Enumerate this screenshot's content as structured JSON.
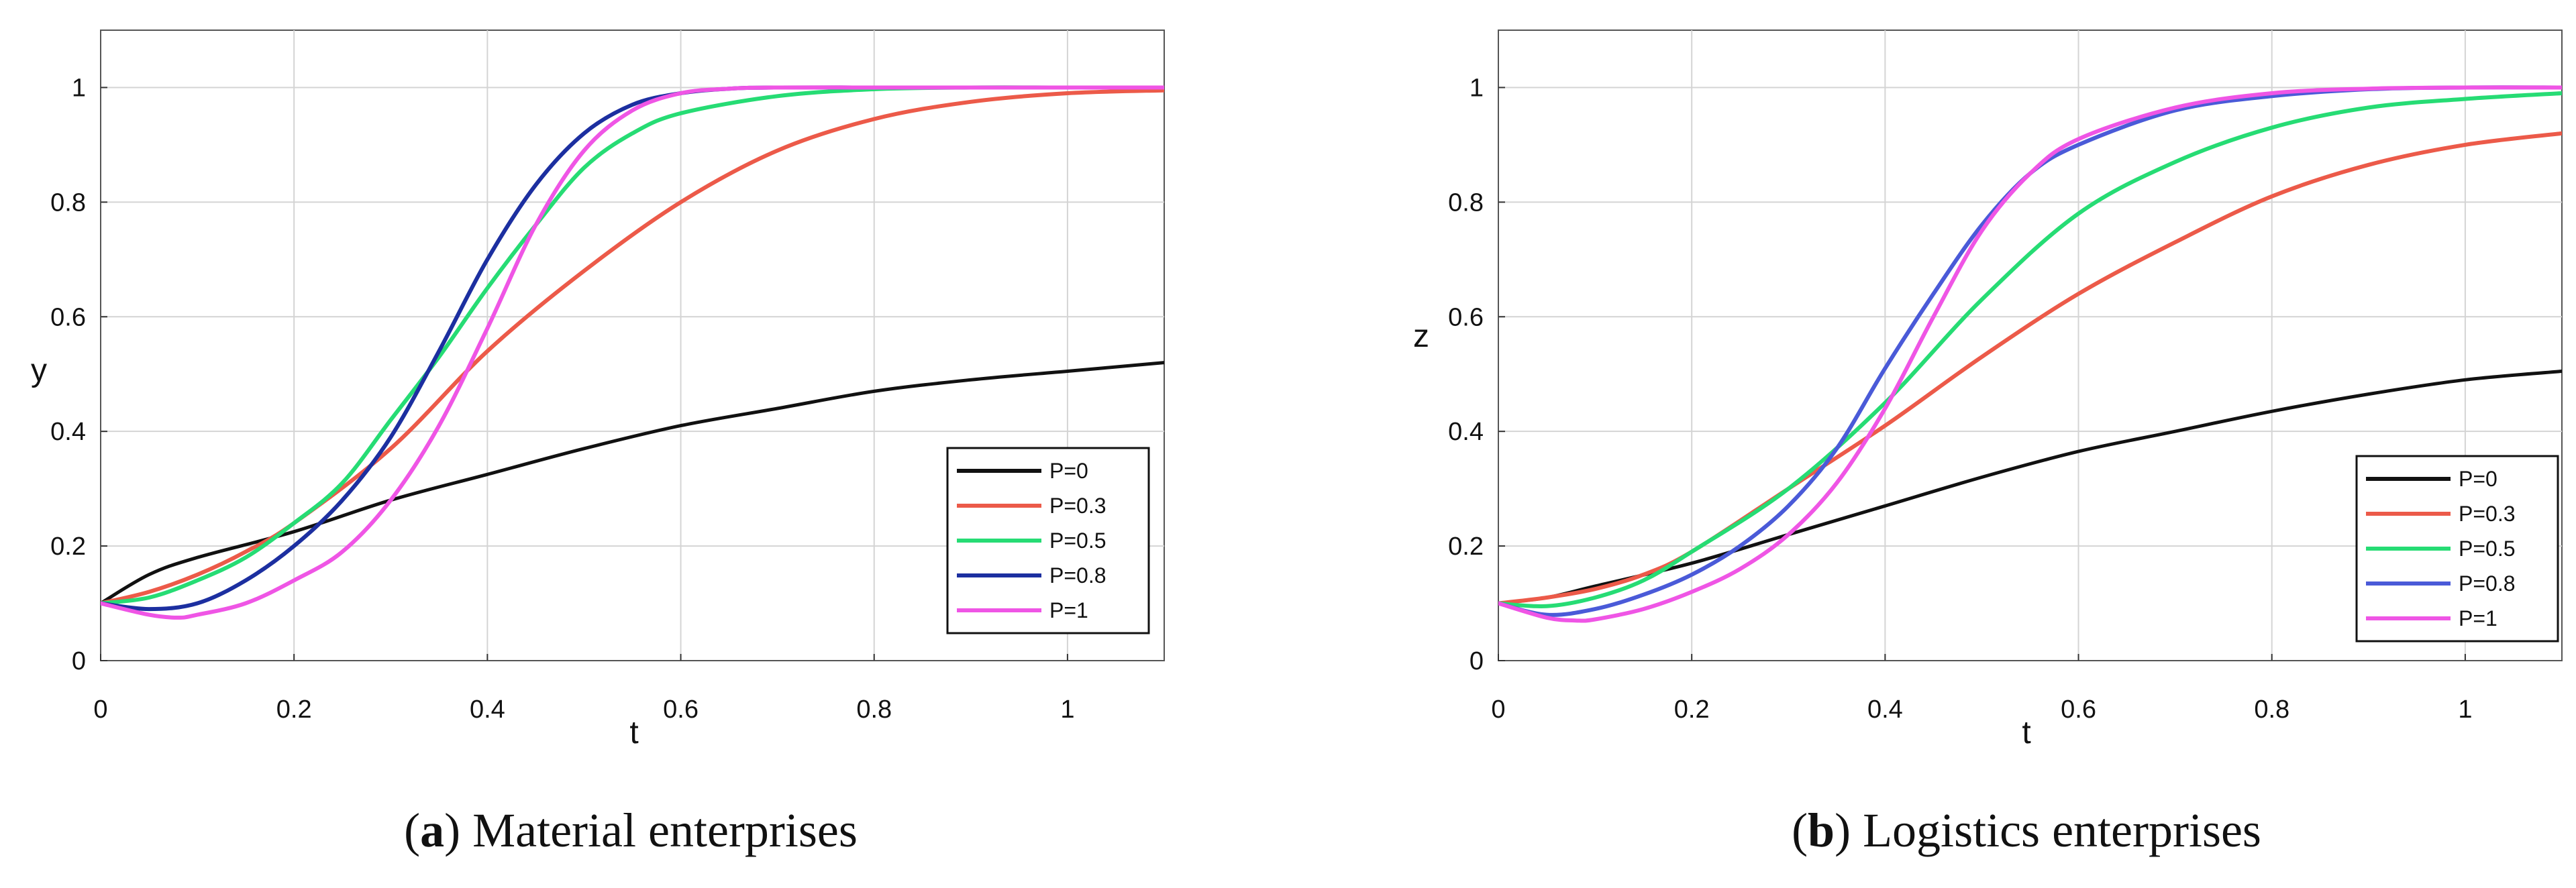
{
  "chart_data": [
    {
      "type": "line",
      "panel": "a",
      "caption_letter": "a",
      "caption_text": "Material enterprises",
      "xlabel": "t",
      "ylabel": "y",
      "xlim": [
        0,
        1.1
      ],
      "ylim": [
        0,
        1.1
      ],
      "xticks": [
        "0",
        "0.2",
        "0.4",
        "0.6",
        "0.8",
        "1"
      ],
      "yticks": [
        "0",
        "0.2",
        "0.4",
        "0.6",
        "0.8",
        "1"
      ],
      "grid": true,
      "legend_position": "bottom-right",
      "series": [
        {
          "name": "P=0",
          "color": "#111111",
          "x": [
            0,
            0.05,
            0.1,
            0.2,
            0.3,
            0.4,
            0.5,
            0.6,
            0.7,
            0.8,
            0.9,
            1.0,
            1.1
          ],
          "y": [
            0.1,
            0.15,
            0.18,
            0.225,
            0.28,
            0.325,
            0.37,
            0.41,
            0.44,
            0.47,
            0.49,
            0.505,
            0.52
          ]
        },
        {
          "name": "P=0.3",
          "color": "#ec5a49",
          "x": [
            0,
            0.05,
            0.1,
            0.15,
            0.2,
            0.3,
            0.4,
            0.5,
            0.6,
            0.7,
            0.8,
            0.9,
            1.0,
            1.1
          ],
          "y": [
            0.1,
            0.12,
            0.15,
            0.19,
            0.24,
            0.37,
            0.54,
            0.68,
            0.8,
            0.89,
            0.945,
            0.975,
            0.99,
            0.995
          ]
        },
        {
          "name": "P=0.5",
          "color": "#26dc74",
          "x": [
            0,
            0.05,
            0.1,
            0.15,
            0.2,
            0.25,
            0.3,
            0.35,
            0.4,
            0.45,
            0.5,
            0.55,
            0.6,
            0.7,
            0.8,
            0.9,
            1.0,
            1.1
          ],
          "y": [
            0.1,
            0.11,
            0.14,
            0.18,
            0.24,
            0.31,
            0.42,
            0.53,
            0.65,
            0.76,
            0.86,
            0.92,
            0.955,
            0.985,
            0.997,
            1.0,
            1.0,
            1.0
          ]
        },
        {
          "name": "P=0.8",
          "color": "#1c2fa0",
          "x": [
            0,
            0.05,
            0.1,
            0.15,
            0.2,
            0.25,
            0.3,
            0.35,
            0.4,
            0.45,
            0.5,
            0.55,
            0.6,
            0.65,
            0.7,
            0.8,
            0.9,
            1.0,
            1.1
          ],
          "y": [
            0.1,
            0.09,
            0.1,
            0.14,
            0.2,
            0.28,
            0.39,
            0.54,
            0.7,
            0.83,
            0.92,
            0.97,
            0.99,
            0.998,
            1.0,
            1.0,
            1.0,
            1.0,
            1.0
          ]
        },
        {
          "name": "P=1",
          "color": "#ef55e5",
          "x": [
            0,
            0.05,
            0.08,
            0.1,
            0.15,
            0.2,
            0.25,
            0.3,
            0.35,
            0.4,
            0.45,
            0.5,
            0.55,
            0.6,
            0.65,
            0.7,
            0.8,
            0.9,
            1.0,
            1.1
          ],
          "y": [
            0.1,
            0.08,
            0.075,
            0.08,
            0.1,
            0.14,
            0.19,
            0.28,
            0.41,
            0.58,
            0.76,
            0.89,
            0.96,
            0.99,
            0.998,
            1.0,
            1.0,
            1.0,
            1.0,
            1.0
          ]
        }
      ]
    },
    {
      "type": "line",
      "panel": "b",
      "caption_letter": "b",
      "caption_text": "Logistics enterprises",
      "xlabel": "t",
      "ylabel": "z",
      "xlim": [
        0,
        1.1
      ],
      "ylim": [
        0,
        1.1
      ],
      "xticks": [
        "0",
        "0.2",
        "0.4",
        "0.6",
        "0.8",
        "1"
      ],
      "yticks": [
        "0",
        "0.2",
        "0.4",
        "0.6",
        "0.8",
        "1"
      ],
      "grid": true,
      "legend_position": "bottom-right",
      "series": [
        {
          "name": "P=0",
          "color": "#111111",
          "x": [
            0,
            0.05,
            0.1,
            0.2,
            0.3,
            0.4,
            0.5,
            0.6,
            0.7,
            0.8,
            0.9,
            1.0,
            1.1
          ],
          "y": [
            0.1,
            0.11,
            0.13,
            0.17,
            0.22,
            0.27,
            0.32,
            0.365,
            0.4,
            0.435,
            0.465,
            0.49,
            0.505
          ]
        },
        {
          "name": "P=0.3",
          "color": "#ec5a49",
          "x": [
            0,
            0.05,
            0.1,
            0.15,
            0.2,
            0.3,
            0.4,
            0.5,
            0.6,
            0.7,
            0.8,
            0.9,
            1.0,
            1.1
          ],
          "y": [
            0.1,
            0.11,
            0.125,
            0.15,
            0.19,
            0.3,
            0.41,
            0.53,
            0.64,
            0.73,
            0.81,
            0.865,
            0.9,
            0.92
          ]
        },
        {
          "name": "P=0.5",
          "color": "#26dc74",
          "x": [
            0,
            0.05,
            0.1,
            0.15,
            0.2,
            0.3,
            0.4,
            0.5,
            0.6,
            0.7,
            0.8,
            0.9,
            1.0,
            1.1
          ],
          "y": [
            0.1,
            0.095,
            0.11,
            0.14,
            0.19,
            0.3,
            0.45,
            0.63,
            0.78,
            0.87,
            0.93,
            0.965,
            0.98,
            0.99
          ]
        },
        {
          "name": "P=0.8",
          "color": "#4a5ad8",
          "x": [
            0,
            0.05,
            0.1,
            0.15,
            0.2,
            0.25,
            0.3,
            0.35,
            0.4,
            0.45,
            0.5,
            0.55,
            0.6,
            0.7,
            0.8,
            0.9,
            1.0,
            1.1
          ],
          "y": [
            0.1,
            0.08,
            0.09,
            0.115,
            0.15,
            0.2,
            0.27,
            0.37,
            0.51,
            0.64,
            0.76,
            0.85,
            0.9,
            0.96,
            0.985,
            0.997,
            1.0,
            1.0
          ]
        },
        {
          "name": "P=1",
          "color": "#ef55e5",
          "x": [
            0,
            0.05,
            0.08,
            0.1,
            0.15,
            0.2,
            0.25,
            0.3,
            0.35,
            0.4,
            0.45,
            0.5,
            0.55,
            0.6,
            0.7,
            0.8,
            0.9,
            1.0,
            1.1
          ],
          "y": [
            0.1,
            0.075,
            0.07,
            0.072,
            0.09,
            0.12,
            0.16,
            0.22,
            0.31,
            0.44,
            0.6,
            0.75,
            0.85,
            0.91,
            0.965,
            0.99,
            0.998,
            1.0,
            1.0
          ]
        }
      ]
    }
  ]
}
